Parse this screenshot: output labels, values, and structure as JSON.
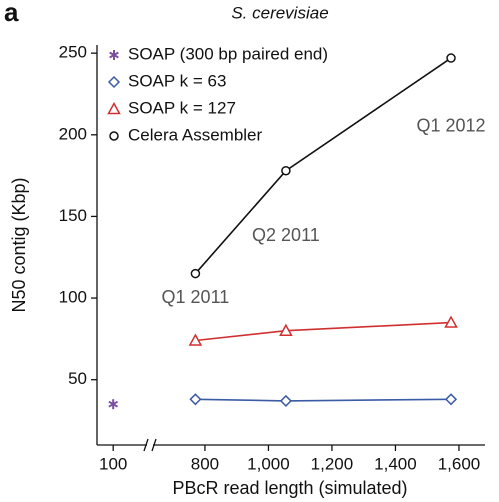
{
  "chart_data": {
    "type": "line",
    "panel_label": "a",
    "title": "S. cerevisiae",
    "x_label": "PBcR read length (simulated)",
    "y_label": "N50 contig (Kbp)",
    "xlim": [
      78,
      1682
    ],
    "x_break": [
      150,
      627
    ],
    "ylim": [
      10,
      255
    ],
    "xticks": [
      100,
      800,
      {
        "value": 1000,
        "label": "1,000"
      },
      {
        "value": 1200,
        "label": "1,200"
      },
      {
        "value": 1400,
        "label": "1,400"
      },
      {
        "value": 1600,
        "label": "1,600"
      }
    ],
    "yticks": [
      50,
      100,
      150,
      200,
      250
    ],
    "series": [
      {
        "name": "SOAP (300 bp paired end)",
        "color": "#7b4fa0",
        "marker": "star",
        "x": [
          100
        ],
        "values": [
          35
        ]
      },
      {
        "name": "SOAP k = 63",
        "color": "#3b5ba5",
        "marker": "diamond",
        "x": [
          770,
          1055,
          1575
        ],
        "values": [
          38,
          37,
          38
        ]
      },
      {
        "name": "SOAP k = 127",
        "color": "#d03030",
        "marker": "triangle",
        "x": [
          770,
          1055,
          1575
        ],
        "values": [
          74,
          80,
          85
        ]
      },
      {
        "name": "Celera Assembler",
        "color": "#111111",
        "marker": "circle",
        "x": [
          770,
          1055,
          1575
        ],
        "values": [
          115,
          178,
          247
        ]
      }
    ],
    "annotations": [
      {
        "text": "Q1 2011",
        "x": 770,
        "y": 100
      },
      {
        "text": "Q2 2011",
        "x": 1055,
        "y": 138
      },
      {
        "text": "Q1 2012",
        "x": 1575,
        "y": 205
      }
    ]
  }
}
